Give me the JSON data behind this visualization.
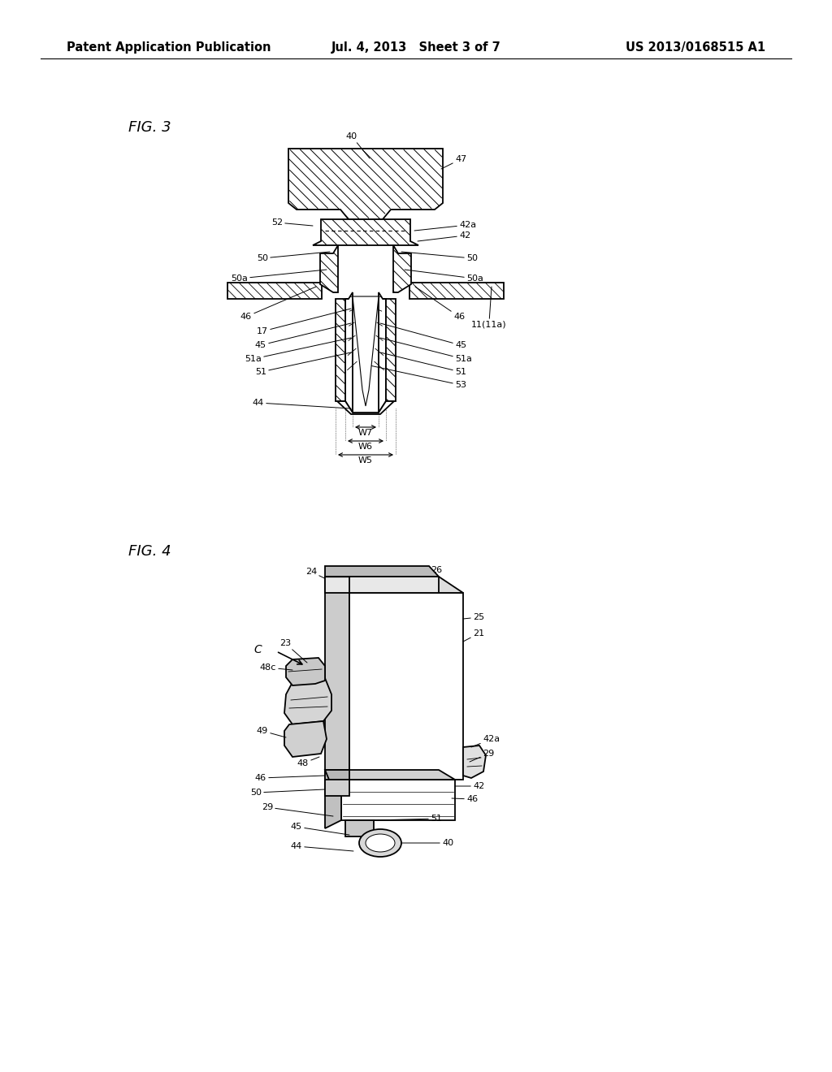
{
  "bg_color": "#ffffff",
  "line_color": "#000000",
  "header": {
    "left": "Patent Application Publication",
    "center": "Jul. 4, 2013   Sheet 3 of 7",
    "right": "US 2013/0168515 A1",
    "fontsize": 10.5
  },
  "fig3_label": "FIG. 3",
  "fig4_label": "FIG. 4",
  "fontsize_label": 13,
  "fontsize_ann": 8
}
